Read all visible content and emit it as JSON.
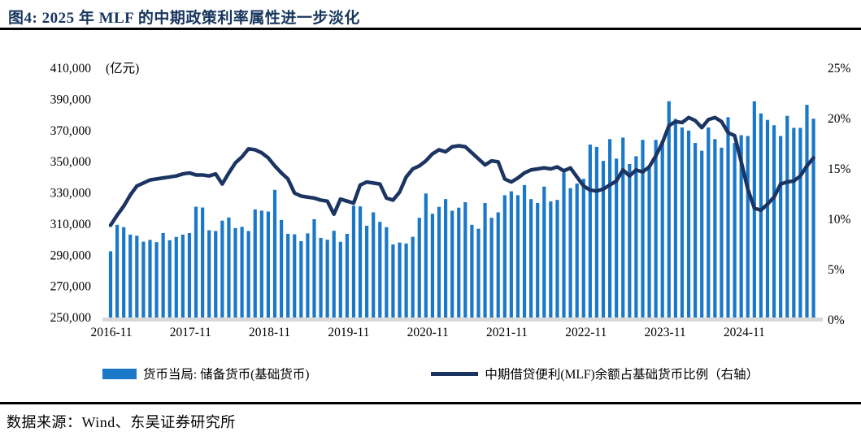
{
  "page": {
    "title": "图4:  2025 年 MLF 的中期政策利率属性进一步淡化",
    "source": "数据来源：Wind、东吴证券研究所"
  },
  "colors": {
    "title": "#17365D",
    "bar": "#1B78C8",
    "line": "#1C3462",
    "axis_text": "#000000",
    "baseline": "#D9D9D9",
    "rule": "#000000"
  },
  "chart_data": {
    "type": "bar",
    "subtype": "bar+line dual-axis combo, monthly",
    "title": "图4: 2025 年 MLF 的中期政策利率属性进一步淡化",
    "unit_label": "(亿元)",
    "grid": false,
    "legend_position": "bottom",
    "left_axis": {
      "min": 250000,
      "max": 410000,
      "tick_labels": [
        "410,000",
        "390,000",
        "370,000",
        "350,000",
        "330,000",
        "310,000",
        "290,000",
        "270,000",
        "250,000"
      ]
    },
    "right_axis": {
      "min": 0,
      "max": 25,
      "tick_labels": [
        "25%",
        "20%",
        "15%",
        "10%",
        "5%",
        "0%"
      ]
    },
    "x_tick_labels": [
      "2016-11",
      "2017-11",
      "2018-11",
      "2019-11",
      "2020-11",
      "2021-11",
      "2022-11",
      "2023-11",
      "2024-11"
    ],
    "x": [
      "2016-11",
      "2016-12",
      "2017-01",
      "2017-02",
      "2017-03",
      "2017-04",
      "2017-05",
      "2017-06",
      "2017-07",
      "2017-08",
      "2017-09",
      "2017-10",
      "2017-11",
      "2017-12",
      "2018-01",
      "2018-02",
      "2018-03",
      "2018-04",
      "2018-05",
      "2018-06",
      "2018-07",
      "2018-08",
      "2018-09",
      "2018-10",
      "2018-11",
      "2018-12",
      "2019-01",
      "2019-02",
      "2019-03",
      "2019-04",
      "2019-05",
      "2019-06",
      "2019-07",
      "2019-08",
      "2019-09",
      "2019-10",
      "2019-11",
      "2019-12",
      "2020-01",
      "2020-02",
      "2020-03",
      "2020-04",
      "2020-05",
      "2020-06",
      "2020-07",
      "2020-08",
      "2020-09",
      "2020-10",
      "2020-11",
      "2020-12",
      "2021-01",
      "2021-02",
      "2021-03",
      "2021-04",
      "2021-05",
      "2021-06",
      "2021-07",
      "2021-08",
      "2021-09",
      "2021-10",
      "2021-11",
      "2021-12",
      "2022-01",
      "2022-02",
      "2022-03",
      "2022-04",
      "2022-05",
      "2022-06",
      "2022-07",
      "2022-08",
      "2022-09",
      "2022-10",
      "2022-11",
      "2022-12",
      "2023-01",
      "2023-02",
      "2023-03",
      "2023-04",
      "2023-05",
      "2023-06",
      "2023-07",
      "2023-08",
      "2023-09",
      "2023-10",
      "2023-11",
      "2023-12",
      "2024-01",
      "2024-02",
      "2024-03",
      "2024-04",
      "2024-05",
      "2024-06",
      "2024-07",
      "2024-08",
      "2024-09",
      "2024-10",
      "2024-11",
      "2024-12",
      "2025-01",
      "2025-02",
      "2025-03",
      "2025-04",
      "2025-05",
      "2025-06",
      "2025-07",
      "2025-08",
      "2025-09",
      "2025-10"
    ],
    "series": [
      {
        "name": "货币当局: 储备货币(基础货币)",
        "type": "bar",
        "axis": "left",
        "color": "#1B78C8",
        "values": [
          292500,
          309500,
          308000,
          303200,
          302500,
          298700,
          299800,
          298400,
          304200,
          299600,
          301700,
          303200,
          304200,
          321100,
          320600,
          306000,
          305500,
          312200,
          314200,
          307400,
          308200,
          305500,
          319400,
          318600,
          318000,
          331900,
          312600,
          303700,
          303400,
          299000,
          304000,
          313100,
          301100,
          299900,
          305700,
          298600,
          303700,
          321800,
          321300,
          308900,
          317500,
          311400,
          308000,
          296900,
          298100,
          297500,
          301800,
          314000,
          329600,
          316600,
          321000,
          326000,
          318500,
          320500,
          324000,
          309500,
          307000,
          323500,
          314000,
          317500,
          328500,
          331000,
          328500,
          335000,
          326000,
          323500,
          334000,
          324500,
          325500,
          343000,
          333000,
          336000,
          339000,
          361000,
          359500,
          350500,
          364500,
          352000,
          365500,
          348500,
          353500,
          364000,
          346000,
          364000,
          363500,
          388800,
          377500,
          372000,
          370000,
          362000,
          357000,
          372000,
          364500,
          359000,
          378500,
          362000,
          367000,
          366500,
          388800,
          381000,
          376800,
          373400,
          366500,
          379400,
          371700,
          371700,
          386500,
          377600
        ]
      },
      {
        "name": "中期借贷便利(MLF)余额占基础货币比例（右轴）",
        "type": "line",
        "axis": "right",
        "color": "#1C3462",
        "values": [
          9.4,
          10.4,
          11.3,
          12.4,
          13.3,
          13.6,
          13.9,
          14.0,
          14.1,
          14.2,
          14.3,
          14.5,
          14.6,
          14.4,
          14.4,
          14.3,
          14.5,
          13.5,
          14.6,
          15.6,
          16.2,
          17.0,
          16.9,
          16.6,
          16.1,
          15.3,
          14.6,
          14.0,
          12.6,
          12.3,
          12.2,
          12.1,
          11.9,
          11.8,
          10.5,
          12.0,
          11.8,
          11.6,
          13.4,
          13.7,
          13.6,
          13.5,
          12.1,
          11.9,
          12.7,
          14.2,
          15.0,
          15.3,
          15.8,
          16.5,
          16.9,
          16.7,
          17.2,
          17.3,
          17.2,
          16.6,
          16.0,
          15.4,
          15.8,
          15.7,
          14.0,
          13.7,
          14.1,
          14.6,
          14.9,
          15.0,
          15.1,
          15.0,
          15.2,
          14.8,
          15.1,
          14.2,
          13.3,
          12.9,
          12.8,
          13.0,
          13.4,
          13.8,
          14.9,
          14.3,
          14.9,
          14.7,
          15.2,
          16.3,
          17.6,
          19.3,
          19.7,
          19.6,
          20.1,
          19.8,
          19.1,
          19.9,
          20.1,
          19.7,
          18.6,
          18.3,
          15.7,
          13.0,
          11.1,
          10.9,
          11.5,
          12.2,
          13.5,
          13.7,
          13.8,
          14.3,
          15.3,
          16.1
        ]
      }
    ]
  }
}
